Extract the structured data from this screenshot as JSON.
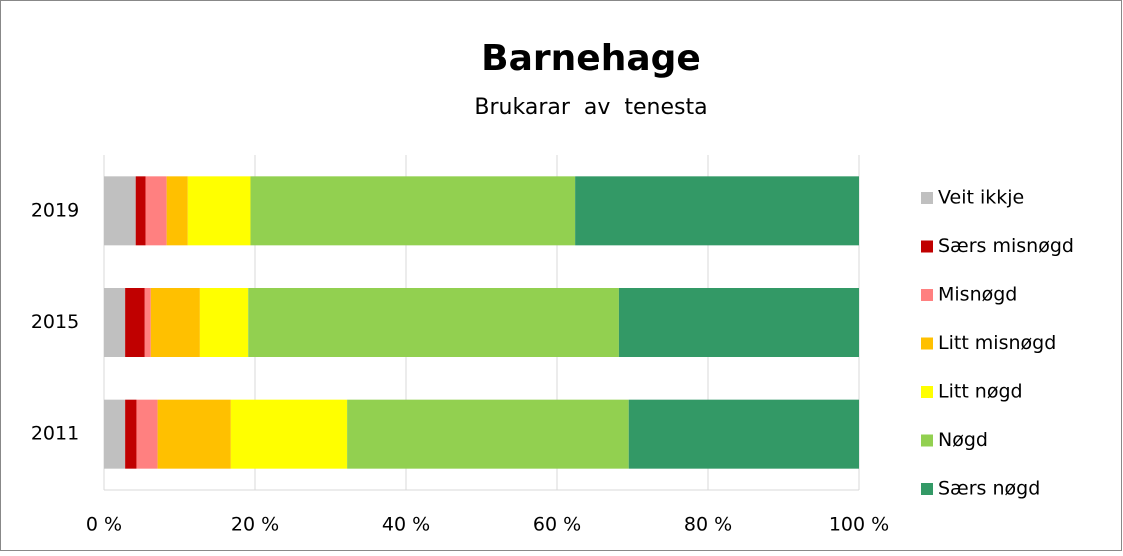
{
  "chart_data": {
    "type": "stacked_barh",
    "title": "Barnehage",
    "subtitle": "Brukarar  av  tenesta",
    "categories": [
      "2019",
      "2015",
      "2011"
    ],
    "series": [
      {
        "name": "Veit ikkje",
        "color": "#c0c0c0",
        "values": [
          4.2,
          2.8,
          2.8
        ]
      },
      {
        "name": "Særs misnøgd",
        "color": "#c00000",
        "values": [
          1.3,
          2.6,
          1.5
        ]
      },
      {
        "name": "Misnøgd",
        "color": "#ff8080",
        "values": [
          2.8,
          0.8,
          2.8
        ]
      },
      {
        "name": "Litt misnøgd",
        "color": "#ffc000",
        "values": [
          2.8,
          6.5,
          9.7
        ]
      },
      {
        "name": "Litt nøgd",
        "color": "#ffff00",
        "values": [
          8.3,
          6.4,
          15.4
        ]
      },
      {
        "name": "Nøgd",
        "color": "#92d050",
        "values": [
          43.0,
          49.1,
          37.3
        ]
      },
      {
        "name": "Særs nøgd",
        "color": "#339966",
        "values": [
          37.6,
          31.8,
          30.5
        ]
      }
    ],
    "xlim": [
      0,
      100
    ],
    "xticks": [
      {
        "value": 0,
        "label": "0 %"
      },
      {
        "value": 20,
        "label": "20 %"
      },
      {
        "value": 40,
        "label": "40 %"
      },
      {
        "value": 60,
        "label": "60 %"
      },
      {
        "value": 80,
        "label": "80 %"
      },
      {
        "value": 100,
        "label": "100 %"
      }
    ],
    "grid": true,
    "legend": "right"
  }
}
